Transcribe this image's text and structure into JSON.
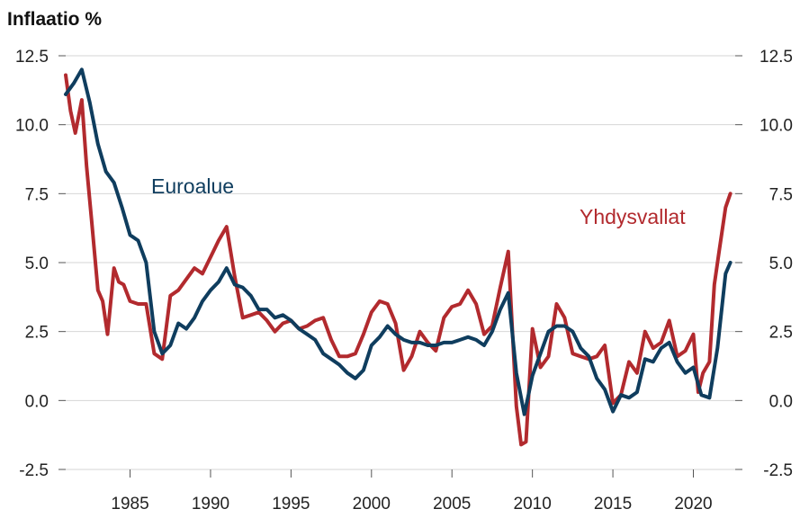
{
  "chart_data": {
    "type": "line",
    "title": "Inflaatio %",
    "xlabel": "",
    "ylabel": "",
    "xlim": [
      1981.0,
      2022.6
    ],
    "ylim": [
      -2.5,
      12.5
    ],
    "yticks": [
      "12.5",
      "10.0",
      "7.5",
      "5.0",
      "2.5",
      "0.0",
      "-2.5"
    ],
    "xticks": [
      "1985",
      "1990",
      "1995",
      "2000",
      "2005",
      "2010",
      "2015",
      "2020"
    ],
    "grid": true,
    "legend": "inline labels",
    "series": [
      {
        "name": "Euroalue",
        "color": "#0f3d5e",
        "x": [
          1981.0,
          1981.5,
          1982.0,
          1982.5,
          1983.0,
          1983.5,
          1984.0,
          1984.5,
          1985.0,
          1985.5,
          1986.0,
          1986.5,
          1987.0,
          1987.5,
          1988.0,
          1988.5,
          1989.0,
          1989.5,
          1990.0,
          1990.5,
          1991.0,
          1991.5,
          1992.0,
          1992.5,
          1993.0,
          1993.5,
          1994.0,
          1994.5,
          1995.0,
          1995.5,
          1996.0,
          1996.5,
          1997.0,
          1997.5,
          1998.0,
          1998.5,
          1999.0,
          1999.5,
          2000.0,
          2000.5,
          2001.0,
          2001.5,
          2002.0,
          2002.5,
          2003.0,
          2003.5,
          2004.0,
          2004.5,
          2005.0,
          2005.5,
          2006.0,
          2006.5,
          2007.0,
          2007.5,
          2008.0,
          2008.5,
          2009.0,
          2009.5,
          2010.0,
          2010.5,
          2011.0,
          2011.5,
          2012.0,
          2012.5,
          2013.0,
          2013.5,
          2014.0,
          2014.5,
          2015.0,
          2015.5,
          2016.0,
          2016.5,
          2017.0,
          2017.5,
          2018.0,
          2018.5,
          2019.0,
          2019.5,
          2020.0,
          2020.5,
          2021.0,
          2021.5,
          2022.0,
          2022.3
        ],
        "values": [
          11.1,
          11.5,
          12.0,
          10.8,
          9.3,
          8.3,
          7.9,
          7.0,
          6.0,
          5.8,
          5.0,
          2.5,
          1.7,
          2.0,
          2.8,
          2.6,
          3.0,
          3.6,
          4.0,
          4.3,
          4.8,
          4.2,
          4.1,
          3.8,
          3.3,
          3.3,
          3.0,
          3.1,
          2.9,
          2.6,
          2.4,
          2.2,
          1.7,
          1.5,
          1.3,
          1.0,
          0.8,
          1.1,
          2.0,
          2.3,
          2.7,
          2.4,
          2.2,
          2.1,
          2.1,
          2.0,
          2.0,
          2.1,
          2.1,
          2.2,
          2.3,
          2.2,
          2.0,
          2.5,
          3.3,
          3.9,
          1.0,
          -0.5,
          0.9,
          1.7,
          2.5,
          2.7,
          2.7,
          2.5,
          1.9,
          1.6,
          0.8,
          0.4,
          -0.4,
          0.2,
          0.1,
          0.3,
          1.5,
          1.4,
          1.9,
          2.1,
          1.4,
          1.0,
          1.2,
          0.2,
          0.1,
          1.9,
          4.6,
          5.0
        ]
      },
      {
        "name": "Yhdysvallat",
        "color": "#b22a2e",
        "x": [
          1981.0,
          1981.3,
          1981.6,
          1982.0,
          1982.3,
          1982.6,
          1983.0,
          1983.3,
          1983.6,
          1984.0,
          1984.3,
          1984.6,
          1985.0,
          1985.5,
          1986.0,
          1986.5,
          1987.0,
          1987.5,
          1988.0,
          1988.5,
          1989.0,
          1989.5,
          1990.0,
          1990.5,
          1991.0,
          1991.5,
          1992.0,
          1992.5,
          1993.0,
          1993.5,
          1994.0,
          1994.5,
          1995.0,
          1995.5,
          1996.0,
          1996.5,
          1997.0,
          1997.5,
          1998.0,
          1998.5,
          1999.0,
          1999.5,
          2000.0,
          2000.5,
          2001.0,
          2001.5,
          2002.0,
          2002.5,
          2003.0,
          2003.5,
          2004.0,
          2004.5,
          2005.0,
          2005.5,
          2006.0,
          2006.5,
          2007.0,
          2007.5,
          2008.0,
          2008.5,
          2009.0,
          2009.3,
          2009.6,
          2010.0,
          2010.5,
          2011.0,
          2011.5,
          2012.0,
          2012.5,
          2013.0,
          2013.5,
          2014.0,
          2014.5,
          2015.0,
          2015.5,
          2016.0,
          2016.5,
          2017.0,
          2017.5,
          2018.0,
          2018.5,
          2019.0,
          2019.5,
          2020.0,
          2020.3,
          2020.6,
          2021.0,
          2021.3,
          2021.6,
          2022.0,
          2022.3
        ],
        "values": [
          11.8,
          10.5,
          9.7,
          10.9,
          8.5,
          6.6,
          4.0,
          3.6,
          2.4,
          4.8,
          4.3,
          4.2,
          3.6,
          3.5,
          3.5,
          1.7,
          1.5,
          3.8,
          4.0,
          4.4,
          4.8,
          4.6,
          5.2,
          5.8,
          6.3,
          4.5,
          3.0,
          3.1,
          3.2,
          2.9,
          2.5,
          2.8,
          2.9,
          2.6,
          2.7,
          2.9,
          3.0,
          2.2,
          1.6,
          1.6,
          1.7,
          2.4,
          3.2,
          3.6,
          3.5,
          2.8,
          1.1,
          1.6,
          2.5,
          2.1,
          1.8,
          3.0,
          3.4,
          3.5,
          4.0,
          3.5,
          2.4,
          2.7,
          4.1,
          5.4,
          -0.2,
          -1.6,
          -1.5,
          2.6,
          1.2,
          1.6,
          3.5,
          3.0,
          1.7,
          1.6,
          1.5,
          1.6,
          2.0,
          -0.1,
          0.2,
          1.4,
          1.0,
          2.5,
          1.9,
          2.1,
          2.9,
          1.6,
          1.8,
          2.4,
          0.3,
          1.0,
          1.4,
          4.2,
          5.4,
          7.0,
          7.5
        ]
      }
    ],
    "labels": {
      "euro": "Euroalue",
      "us": "Yhdysvallat"
    }
  }
}
